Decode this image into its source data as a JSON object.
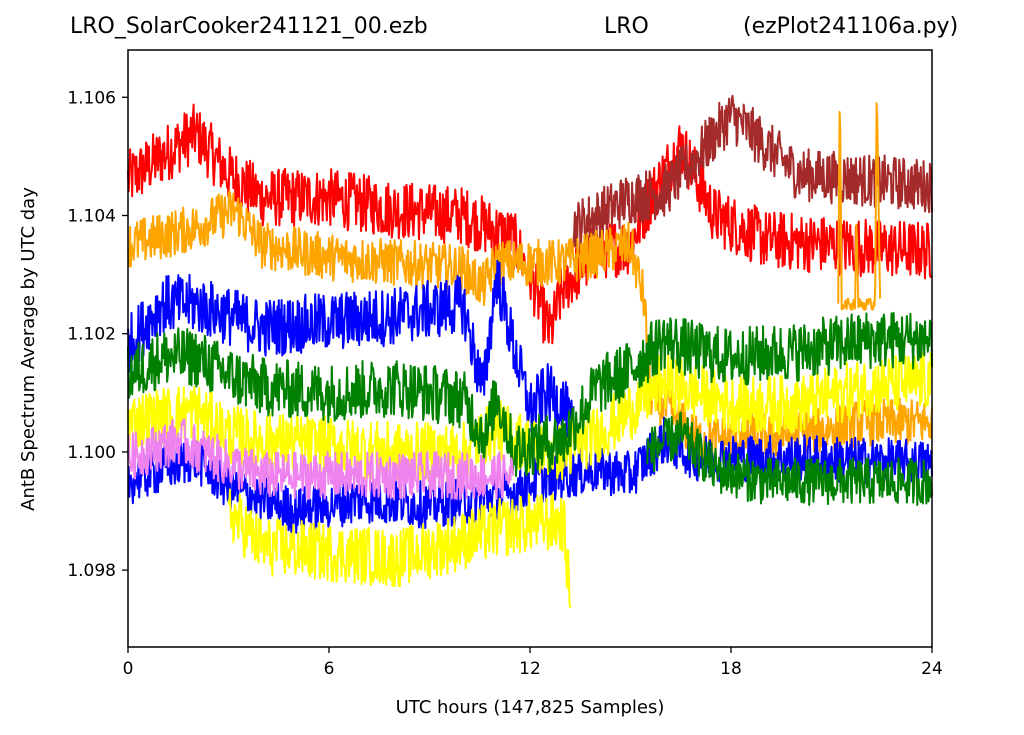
{
  "header": {
    "left": "LRO_SolarCooker241121_00.ezb",
    "middle": "LRO",
    "right": "(ezPlot241106a.py)"
  },
  "chart_data": {
    "type": "line",
    "xlabel": "UTC hours  (147,825 Samples)",
    "ylabel": "AntB Spectrum Average by UTC day",
    "xlim": [
      0,
      24
    ],
    "ylim": [
      1.0967,
      1.1068
    ],
    "x_ticks": [
      "0",
      "6",
      "12",
      "18",
      "24"
    ],
    "y_ticks": [
      "1.098",
      "1.100",
      "1.102",
      "1.104",
      "1.106"
    ],
    "grid": false,
    "series": [
      {
        "color": "#ff0000",
        "noise": 0.0005,
        "points": [
          [
            0,
            1.1046
          ],
          [
            1,
            1.105
          ],
          [
            2,
            1.1054
          ],
          [
            3,
            1.1047
          ],
          [
            4,
            1.1043
          ],
          [
            6,
            1.1043
          ],
          [
            8,
            1.1041
          ],
          [
            10,
            1.104
          ],
          [
            11.5,
            1.1036
          ],
          [
            12,
            1.103
          ],
          [
            12.6,
            1.102
          ],
          [
            13,
            1.1028
          ],
          [
            14,
            1.1034
          ],
          [
            15,
            1.1035
          ],
          [
            15.5,
            1.1042
          ],
          [
            16.5,
            1.1052
          ],
          [
            17.5,
            1.104
          ],
          [
            19,
            1.1036
          ],
          [
            21,
            1.1035
          ],
          [
            24,
            1.1034
          ]
        ]
      },
      {
        "color": "#a52a2a",
        "noise": 0.00045,
        "points": [
          [
            13.3,
            1.1038
          ],
          [
            14,
            1.104
          ],
          [
            15,
            1.1043
          ],
          [
            16,
            1.1044
          ],
          [
            17,
            1.105
          ],
          [
            18,
            1.1057
          ],
          [
            19,
            1.1052
          ],
          [
            20,
            1.1047
          ],
          [
            22,
            1.1046
          ],
          [
            24,
            1.1045
          ]
        ]
      },
      {
        "color": "#ffa500",
        "noise": 0.0004,
        "points": [
          [
            0,
            1.1035
          ],
          [
            2,
            1.1038
          ],
          [
            3.2,
            1.1041
          ],
          [
            4,
            1.1035
          ],
          [
            6,
            1.1033
          ],
          [
            8,
            1.1032
          ],
          [
            10,
            1.1031
          ],
          [
            10.6,
            1.1028
          ],
          [
            11,
            1.1032
          ],
          [
            13,
            1.1032
          ],
          [
            15,
            1.1035
          ],
          [
            15.4,
            1.1026
          ],
          [
            15.6,
            1.101
          ],
          [
            17,
            1.1002
          ],
          [
            20,
            1.1003
          ],
          [
            22,
            1.1005
          ],
          [
            24,
            1.1005
          ]
        ]
      },
      {
        "color": "#0000ff",
        "noise": 0.0005,
        "points": [
          [
            0,
            1.1018
          ],
          [
            1,
            1.1025
          ],
          [
            2,
            1.1025
          ],
          [
            3,
            1.1023
          ],
          [
            4,
            1.1021
          ],
          [
            6,
            1.1022
          ],
          [
            8,
            1.1023
          ],
          [
            10,
            1.1025
          ],
          [
            10.6,
            1.101
          ],
          [
            11,
            1.103
          ],
          [
            11.5,
            1.1018
          ],
          [
            12,
            1.1007
          ],
          [
            12.5,
            1.101
          ],
          [
            13,
            1.1008
          ],
          [
            13.3,
            1.1003
          ]
        ]
      },
      {
        "color": "#0000ff",
        "noise": 0.0004,
        "points": [
          [
            0,
            1.0995
          ],
          [
            2,
            1.0999
          ],
          [
            3,
            1.0994
          ],
          [
            5,
            1.099
          ],
          [
            7,
            1.0992
          ],
          [
            9,
            1.0991
          ],
          [
            10.5,
            1.0992
          ],
          [
            11.5,
            1.0993
          ],
          [
            12,
            1.0995
          ],
          [
            13,
            1.0996
          ],
          [
            14,
            1.0997
          ],
          [
            15,
            1.0996
          ],
          [
            16,
            1.1002
          ],
          [
            17,
            1.0999
          ],
          [
            18,
            1.0999
          ],
          [
            20,
            1.0999
          ],
          [
            24,
            1.0998
          ]
        ]
      },
      {
        "color": "#ffff00",
        "noise": 0.0005,
        "points": [
          [
            0,
            1.1005
          ],
          [
            2,
            1.1007
          ],
          [
            3,
            1.1003
          ],
          [
            4,
            1.1002
          ],
          [
            6,
            1.1001
          ],
          [
            8,
            1.1
          ],
          [
            10,
            1.1
          ],
          [
            11,
            1.1004
          ],
          [
            12,
            1.1001
          ],
          [
            13,
            1.1
          ],
          [
            14,
            1.1003
          ],
          [
            15,
            1.1007
          ],
          [
            16,
            1.1012
          ],
          [
            18,
            1.1008
          ],
          [
            20,
            1.1008
          ],
          [
            22,
            1.1011
          ],
          [
            24,
            1.1012
          ]
        ]
      },
      {
        "color": "#ffff00",
        "noise": 0.0005,
        "points": [
          [
            3,
            1.099
          ],
          [
            4,
            1.0984
          ],
          [
            6,
            1.0983
          ],
          [
            8,
            1.0982
          ],
          [
            10,
            1.0985
          ],
          [
            11,
            1.0987
          ],
          [
            12,
            1.0988
          ],
          [
            13,
            1.0988
          ],
          [
            13.2,
            1.0975
          ]
        ]
      },
      {
        "color": "#008000",
        "noise": 0.0005,
        "points": [
          [
            0,
            1.1013
          ],
          [
            1,
            1.1016
          ],
          [
            2,
            1.1016
          ],
          [
            3,
            1.1013
          ],
          [
            4,
            1.1011
          ],
          [
            6,
            1.101
          ],
          [
            8,
            1.1011
          ],
          [
            10,
            1.1009
          ],
          [
            10.7,
            1.1002
          ],
          [
            11,
            1.101
          ],
          [
            11.5,
            1.1
          ],
          [
            12,
            1.1001
          ],
          [
            13,
            1.1002
          ],
          [
            14,
            1.1011
          ],
          [
            15,
            1.1014
          ],
          [
            16,
            1.1019
          ],
          [
            17,
            1.1017
          ],
          [
            18,
            1.1016
          ],
          [
            20,
            1.1017
          ],
          [
            22,
            1.1019
          ],
          [
            24,
            1.1019
          ]
        ]
      },
      {
        "color": "#008000",
        "noise": 0.0004,
        "points": [
          [
            15.5,
            1.1
          ],
          [
            16.5,
            1.1003
          ],
          [
            17.5,
            1.0997
          ],
          [
            19,
            1.0995
          ],
          [
            21,
            1.0995
          ],
          [
            24,
            1.0995
          ]
        ]
      },
      {
        "color": "#ee82ee",
        "noise": 0.0004,
        "points": [
          [
            0,
            1.0999
          ],
          [
            1.5,
            1.1002
          ],
          [
            3,
            1.0998
          ],
          [
            4,
            1.0996
          ],
          [
            6,
            1.0996
          ],
          [
            8,
            1.0996
          ],
          [
            10,
            1.0996
          ],
          [
            11.5,
            1.0996
          ]
        ]
      },
      {
        "color": "#ffa500",
        "noise": 0.0001,
        "points": [
          [
            21.2,
            1.1025
          ],
          [
            21.25,
            1.1063
          ],
          [
            21.3,
            1.1025
          ],
          [
            21.7,
            1.1025
          ],
          [
            21.75,
            1.104
          ],
          [
            21.8,
            1.1025
          ],
          [
            22.3,
            1.1025
          ],
          [
            22.35,
            1.1063
          ],
          [
            22.45,
            1.1025
          ]
        ]
      }
    ]
  }
}
